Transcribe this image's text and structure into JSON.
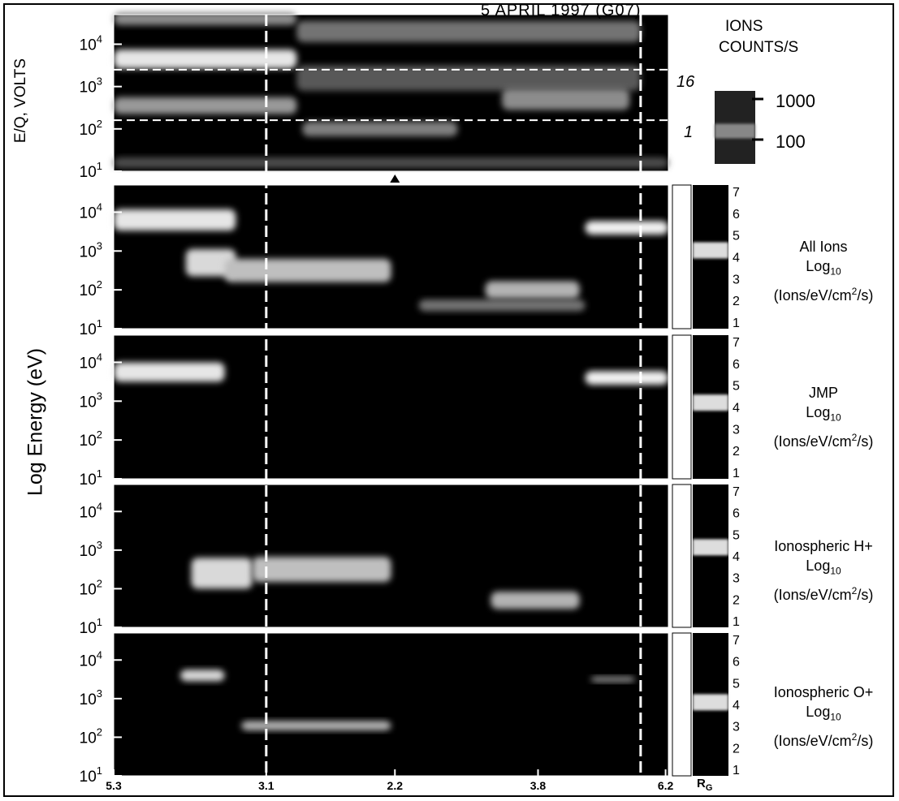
{
  "figure": {
    "title": "5 APRIL 1997 (G07)",
    "top_ylabel": "E/Q, VOLTS",
    "colorbar_title_line1": "IONS",
    "colorbar_title_line2": "COUNTS/S",
    "colorbar_ticks": [
      "1000",
      "100"
    ],
    "contour_labels": [
      "16",
      "1"
    ],
    "main_ylabel": "Log Energy (eV)",
    "x_unit": "RG",
    "panel_label_line2": "Log10",
    "panel_label_line3": "(Ions/eV/cm2/s)"
  },
  "chart_data": [
    {
      "type": "heatmap",
      "name": "top",
      "title": "5 APRIL 1997 (G07)",
      "ylabel": "E/Q, VOLTS",
      "y_scale": "log",
      "ylim": [
        10,
        50000
      ],
      "y_ticks": [
        {
          "base": "10",
          "exp": "4"
        },
        {
          "base": "10",
          "exp": "3"
        },
        {
          "base": "10",
          "exp": "2"
        },
        {
          "base": "10",
          "exp": "1"
        }
      ],
      "colorbar": {
        "label": "IONS COUNTS/S",
        "ticks": [
          1000,
          100
        ]
      },
      "contour_levels": [
        16,
        1
      ],
      "blobs": [
        {
          "x0": 0.0,
          "x1": 0.33,
          "ylog": 3.65,
          "w": 0.45,
          "level": 0.9
        },
        {
          "x0": 0.0,
          "x1": 0.33,
          "ylog": 2.55,
          "w": 0.4,
          "level": 0.6
        },
        {
          "x0": 0.0,
          "x1": 0.33,
          "ylog": 4.6,
          "w": 0.3,
          "level": 0.55
        },
        {
          "x0": 0.33,
          "x1": 0.95,
          "ylog": 4.3,
          "w": 0.5,
          "level": 0.45
        },
        {
          "x0": 0.33,
          "x1": 0.95,
          "ylog": 3.2,
          "w": 0.6,
          "level": 0.35
        },
        {
          "x0": 0.34,
          "x1": 0.62,
          "ylog": 2.0,
          "w": 0.35,
          "level": 0.5
        },
        {
          "x0": 0.7,
          "x1": 0.93,
          "ylog": 2.7,
          "w": 0.5,
          "level": 0.55
        },
        {
          "x0": 0.0,
          "x1": 1.0,
          "ylog": 1.2,
          "w": 0.25,
          "level": 0.3
        }
      ]
    },
    {
      "type": "heatmap",
      "name": "all-ions",
      "label": "All Ions",
      "units": "Log10 (Ions/eV/cm2/s)",
      "colorbar_ticks": [
        "7",
        "6",
        "5",
        "4",
        "3",
        "2",
        "1"
      ],
      "colorbar_level": 4.3,
      "blobs": [
        {
          "x0": 0.0,
          "x1": 0.22,
          "ylog": 3.8,
          "w": 0.55,
          "level": 0.9
        },
        {
          "x0": 0.13,
          "x1": 0.22,
          "ylog": 2.7,
          "w": 0.7,
          "level": 0.85
        },
        {
          "x0": 0.2,
          "x1": 0.5,
          "ylog": 2.5,
          "w": 0.6,
          "level": 0.75
        },
        {
          "x0": 0.55,
          "x1": 0.85,
          "ylog": 1.6,
          "w": 0.3,
          "level": 0.45
        },
        {
          "x0": 0.67,
          "x1": 0.84,
          "ylog": 2.0,
          "w": 0.45,
          "level": 0.7
        },
        {
          "x0": 0.85,
          "x1": 1.0,
          "ylog": 3.6,
          "w": 0.35,
          "level": 0.95
        }
      ]
    },
    {
      "type": "heatmap",
      "name": "jmp",
      "label": "JMP",
      "units": "Log10 (Ions/eV/cm2/s)",
      "colorbar_ticks": [
        "7",
        "6",
        "5",
        "4",
        "3",
        "2",
        "1"
      ],
      "colorbar_level": 4.2,
      "blobs": [
        {
          "x0": 0.0,
          "x1": 0.2,
          "ylog": 3.75,
          "w": 0.5,
          "level": 0.9
        },
        {
          "x0": 0.85,
          "x1": 1.0,
          "ylog": 3.6,
          "w": 0.35,
          "level": 0.95
        }
      ]
    },
    {
      "type": "heatmap",
      "name": "ionospheric-h",
      "label": "Ionospheric H+",
      "units": "Log10 (Ions/eV/cm2/s)",
      "colorbar_ticks": [
        "7",
        "6",
        "5",
        "4",
        "3",
        "2",
        "1"
      ],
      "colorbar_level": 4.4,
      "blobs": [
        {
          "x0": 0.14,
          "x1": 0.25,
          "ylog": 2.4,
          "w": 0.8,
          "level": 0.85
        },
        {
          "x0": 0.25,
          "x1": 0.5,
          "ylog": 2.5,
          "w": 0.65,
          "level": 0.75
        },
        {
          "x0": 0.68,
          "x1": 0.84,
          "ylog": 1.7,
          "w": 0.45,
          "level": 0.7
        }
      ]
    },
    {
      "type": "heatmap",
      "name": "ionospheric-o",
      "label": "Ionospheric O+",
      "units": "Log10 (Ions/eV/cm2/s)",
      "colorbar_ticks": [
        "7",
        "6",
        "5",
        "4",
        "3",
        "2",
        "1"
      ],
      "colorbar_level": 4.1,
      "blobs": [
        {
          "x0": 0.12,
          "x1": 0.2,
          "ylog": 3.6,
          "w": 0.3,
          "level": 0.85
        },
        {
          "x0": 0.23,
          "x1": 0.5,
          "ylog": 2.3,
          "w": 0.25,
          "level": 0.7
        },
        {
          "x0": 0.86,
          "x1": 0.94,
          "ylog": 3.5,
          "w": 0.15,
          "level": 0.55
        }
      ]
    }
  ],
  "shared_axes": {
    "y_scale": "log",
    "ylim": [
      10,
      50000
    ],
    "y_ticks": [
      {
        "base": "10",
        "exp": "4"
      },
      {
        "base": "10",
        "exp": "3"
      },
      {
        "base": "10",
        "exp": "2"
      },
      {
        "base": "10",
        "exp": "1"
      }
    ],
    "x_tick_labels": [
      "5.3",
      "3.1",
      "2.2",
      "3.8",
      "6.2"
    ],
    "x_unit": "RG"
  }
}
